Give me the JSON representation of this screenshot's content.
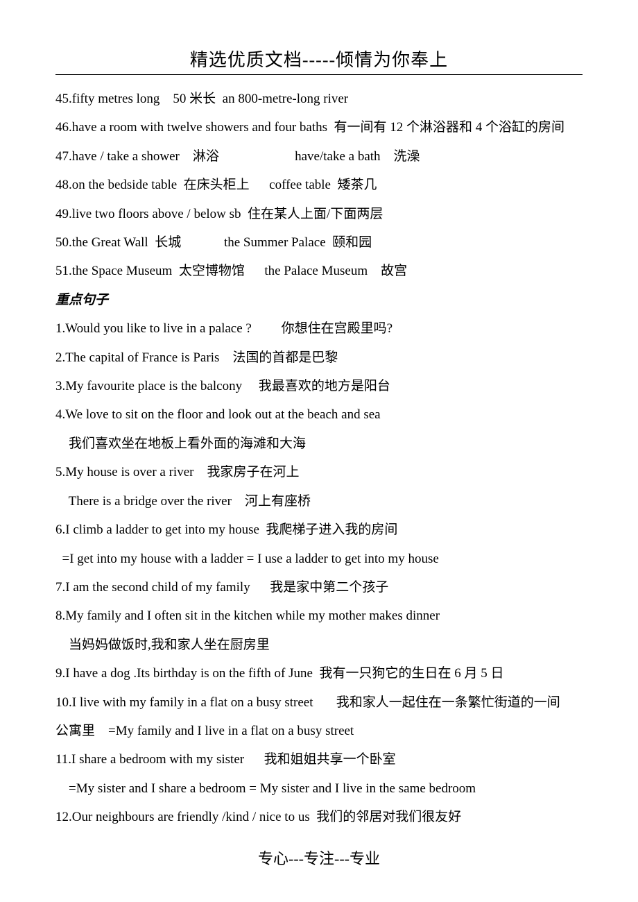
{
  "header": {
    "title": "精选优质文档-----倾情为你奉上"
  },
  "lines": [
    {
      "text": "45.fifty metres long    50 米长  an 800-metre-long river"
    },
    {
      "text": "46.have a room with twelve showers and four baths  有一间有 12 个淋浴器和 4 个浴缸的房间"
    },
    {
      "text": "47.have / take a shower    淋浴                       have/take a bath    洗澡"
    },
    {
      "text": "48.on the bedside table  在床头柜上      coffee table  矮茶几"
    },
    {
      "text": "49.live two floors above / below sb  住在某人上面/下面两层"
    },
    {
      "text": "50.the Great Wall  长城             the Summer Palace  颐和园"
    },
    {
      "text": "51.the Space Museum  太空博物馆      the Palace Museum    故宫"
    },
    {
      "text": "重点句子",
      "style": "bold-italic"
    },
    {
      "text": "1.Would you like to live in a palace ?         你想住在宫殿里吗?"
    },
    {
      "text": "2.The capital of France is Paris    法国的首都是巴黎"
    },
    {
      "text": "3.My favourite place is the balcony     我最喜欢的地方是阳台"
    },
    {
      "text": "4.We love to sit on the floor and look out at the beach and sea"
    },
    {
      "text": "    我们喜欢坐在地板上看外面的海滩和大海"
    },
    {
      "text": "5.My house is over a river    我家房子在河上"
    },
    {
      "text": "    There is a bridge over the river    河上有座桥"
    },
    {
      "text": "6.I climb a ladder to get into my house  我爬梯子进入我的房间"
    },
    {
      "text": "  =I get into my house with a ladder = I use a ladder to get into my house"
    },
    {
      "text": "7.I am the second child of my family      我是家中第二个孩子"
    },
    {
      "text": "8.My family and I often sit in the kitchen while my mother makes dinner"
    },
    {
      "text": "    当妈妈做饭时,我和家人坐在厨房里"
    },
    {
      "text": "9.I have a dog .Its birthday is on the fifth of June  我有一只狗它的生日在 6 月 5 日"
    },
    {
      "text": "10.I live with my family in a flat on a busy street       我和家人一起住在一条繁忙街道的一间"
    },
    {
      "text": "公寓里    =My family and I live in a flat on a busy street"
    },
    {
      "text": "11.I share a bedroom with my sister      我和姐姐共享一个卧室"
    },
    {
      "text": "    =My sister and I share a bedroom = My sister and I live in the same bedroom"
    },
    {
      "text": "12.Our neighbours are friendly /kind / nice to us  我们的邻居对我们很友好"
    }
  ],
  "footer": {
    "text": "专心---专注---专业"
  }
}
